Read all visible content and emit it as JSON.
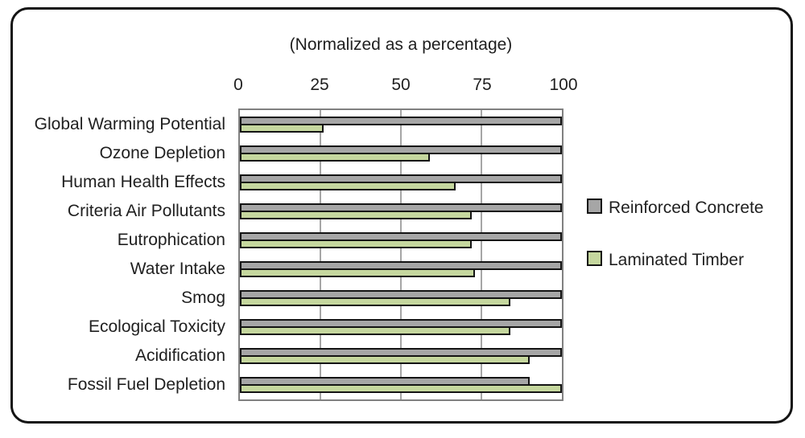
{
  "chart_data": {
    "type": "bar",
    "orientation": "horizontal",
    "title": "(Normalized as a percentage)",
    "categories": [
      "Global Warming Potential",
      "Ozone Depletion",
      "Human Health Effects",
      "Criteria Air Pollutants",
      "Eutrophication",
      "Water Intake",
      "Smog",
      "Ecological Toxicity",
      "Acidification",
      "Fossil Fuel Depletion"
    ],
    "series": [
      {
        "name": "Reinforced Concrete",
        "color": "#A6A6A6",
        "values": [
          100,
          100,
          100,
          100,
          100,
          100,
          100,
          100,
          100,
          90
        ]
      },
      {
        "name": "Laminated Timber",
        "color": "#C5D79E",
        "values": [
          26,
          59,
          67,
          72,
          72,
          73,
          84,
          84,
          90,
          100
        ]
      }
    ],
    "x_axis": {
      "position": "top",
      "min": 0,
      "max": 100,
      "tick_labels": [
        "0",
        "25",
        "50",
        "75",
        "100"
      ],
      "tick_values": [
        0,
        25,
        50,
        75,
        100
      ]
    },
    "gridlines": {
      "vertical_at": [
        25,
        50,
        75
      ],
      "color": "#A6A6A6",
      "horizontal": false
    },
    "legend_position": "right",
    "bar_border_color": "#141414",
    "plot_border_color": "#808080",
    "frame_border_color": "#141414"
  }
}
